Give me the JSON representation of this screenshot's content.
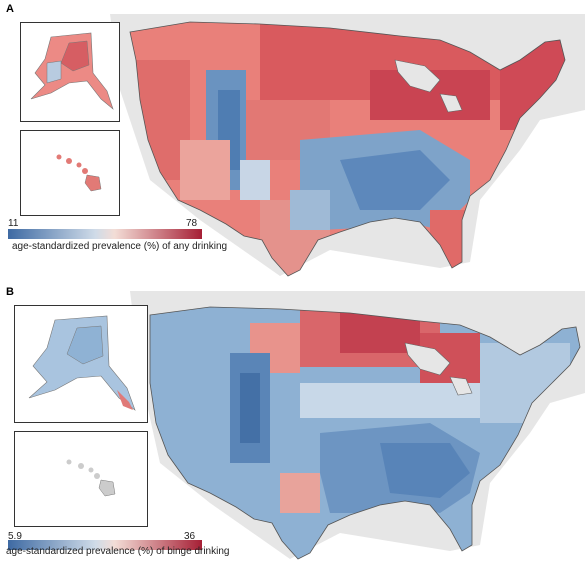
{
  "panels": [
    {
      "letter": "A",
      "legend": {
        "min": "11",
        "max": "78",
        "caption": "age-standardized prevalence (%) of any drinking"
      },
      "colors": {
        "low": "#4a79ad",
        "mid": "#f2ece8",
        "high": "#b0283a"
      }
    },
    {
      "letter": "B",
      "legend": {
        "min": "5.9",
        "max": "36",
        "caption": "age-standardized prevalence (%) of binge drinking"
      },
      "colors": {
        "low": "#4a79ad",
        "mid": "#f2ece8",
        "high": "#b0283a"
      }
    }
  ],
  "background_land_color": "#e6e6e6",
  "border_color": "#555555"
}
